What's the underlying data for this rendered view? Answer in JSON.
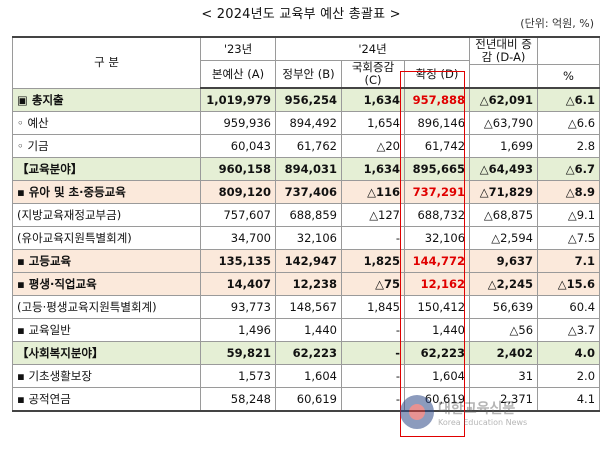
{
  "title": "< 2024년도 교육부 예산 총괄표 >",
  "unit": "(단위: 억원, %)",
  "headers": {
    "category": "구    분",
    "year23": "'23년",
    "year24": "'24년",
    "diff": "전년대비 증감 (D-A)",
    "pct": "%",
    "col_a": "본예산 (A)",
    "col_b": "정부안 (B)",
    "col_c": "국회증감 (C)",
    "col_d": "확정 (D)"
  },
  "rows": [
    {
      "label": "▣ 총지출",
      "a": "1,019,979",
      "b": "956,254",
      "c": "1,634",
      "d": "957,888",
      "diff": "△62,091",
      "pct": "△6.1"
    },
    {
      "label": "◦ 예산",
      "a": "959,936",
      "b": "894,492",
      "c": "1,654",
      "d": "896,146",
      "diff": "△63,790",
      "pct": "△6.6"
    },
    {
      "label": "◦ 기금",
      "a": "60,043",
      "b": "61,762",
      "c": "△20",
      "d": "61,742",
      "diff": "1,699",
      "pct": "2.8"
    },
    {
      "label": "【교육분야】",
      "a": "960,158",
      "b": "894,031",
      "c": "1,634",
      "d": "895,665",
      "diff": "△64,493",
      "pct": "△6.7"
    },
    {
      "label": "▪ 유아 및 초·중등교육",
      "a": "809,120",
      "b": "737,406",
      "c": "△116",
      "d": "737,291",
      "diff": "△71,829",
      "pct": "△8.9"
    },
    {
      "label": "(지방교육재정교부금)",
      "a": "757,607",
      "b": "688,859",
      "c": "△127",
      "d": "688,732",
      "diff": "△68,875",
      "pct": "△9.1"
    },
    {
      "label": "(유아교육지원특별회계)",
      "a": "34,700",
      "b": "32,106",
      "c": "-",
      "d": "32,106",
      "diff": "△2,594",
      "pct": "△7.5"
    },
    {
      "label": "▪ 고등교육",
      "a": "135,135",
      "b": "142,947",
      "c": "1,825",
      "d": "144,772",
      "diff": "9,637",
      "pct": "7.1"
    },
    {
      "label": "▪ 평생·직업교육",
      "a": "14,407",
      "b": "12,238",
      "c": "△75",
      "d": "12,162",
      "diff": "△2,245",
      "pct": "△15.6"
    },
    {
      "label": "(고등·평생교육지원특별회계)",
      "a": "93,773",
      "b": "148,567",
      "c": "1,845",
      "d": "150,412",
      "diff": "56,639",
      "pct": "60.4"
    },
    {
      "label": "▪ 교육일반",
      "a": "1,496",
      "b": "1,440",
      "c": "-",
      "d": "1,440",
      "diff": "△56",
      "pct": "△3.7"
    },
    {
      "label": "【사회복지분야】",
      "a": "59,821",
      "b": "62,223",
      "c": "-",
      "d": "62,223",
      "diff": "2,402",
      "pct": "4.0"
    },
    {
      "label": "▪ 기초생활보장",
      "a": "1,573",
      "b": "1,604",
      "c": "-",
      "d": "1,604",
      "diff": "31",
      "pct": "2.0"
    },
    {
      "label": "▪ 공적연금",
      "a": "58,248",
      "b": "60,619",
      "c": "-",
      "d": "60,619",
      "diff": "2,371",
      "pct": "4.1"
    }
  ],
  "watermark": {
    "title": "대한교육신문",
    "sub": "Korea Education News"
  }
}
